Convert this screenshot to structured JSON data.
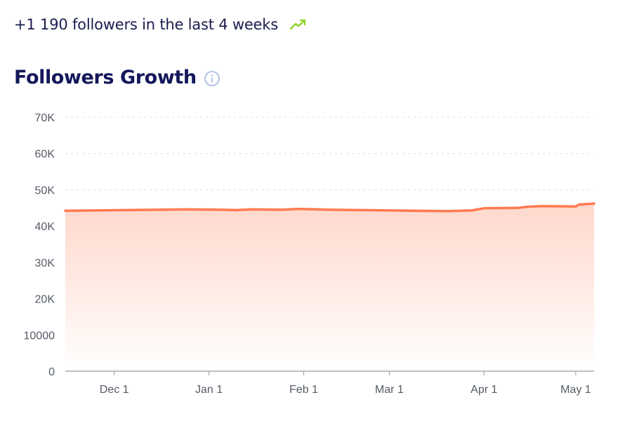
{
  "summary": {
    "text": "+1 190 followers in the last 4 weeks",
    "trend_icon": "trending-up-icon",
    "trend_color": "#8ed12a"
  },
  "header": {
    "title": "Followers Growth",
    "info_icon": "info-icon",
    "info_color": "#a9bce3"
  },
  "colors": {
    "line": "#ff7a52",
    "area_top": "#ffd6c9",
    "grid": "#dcdcdc",
    "axis": "#9a9a9a",
    "ticks": "#555b66"
  },
  "chart_data": {
    "type": "area",
    "title": "Followers Growth",
    "xlabel": "",
    "ylabel": "",
    "ylim": [
      0,
      70000
    ],
    "y_ticks": [
      {
        "value": 0,
        "label": "0"
      },
      {
        "value": 10000,
        "label": "10000"
      },
      {
        "value": 20000,
        "label": "20K"
      },
      {
        "value": 30000,
        "label": "30K"
      },
      {
        "value": 40000,
        "label": "40K"
      },
      {
        "value": 50000,
        "label": "50K"
      },
      {
        "value": 60000,
        "label": "60K"
      },
      {
        "value": 70000,
        "label": "70K"
      }
    ],
    "x_range": [
      "2024-11-15",
      "2025-05-07"
    ],
    "x_ticks": [
      {
        "date": "2024-12-01",
        "label": "Dec 1"
      },
      {
        "date": "2025-01-01",
        "label": "Jan 1"
      },
      {
        "date": "2025-02-01",
        "label": "Feb 1"
      },
      {
        "date": "2025-03-01",
        "label": "Mar 1"
      },
      {
        "date": "2025-04-01",
        "label": "Apr 1"
      },
      {
        "date": "2025-05-01",
        "label": "May 1"
      }
    ],
    "grid": true,
    "legend": "none",
    "series": [
      {
        "values": [
          {
            "x": "2024-11-15",
            "y": 44200
          },
          {
            "x": "2024-11-25",
            "y": 44300
          },
          {
            "x": "2024-12-05",
            "y": 44400
          },
          {
            "x": "2024-12-15",
            "y": 44500
          },
          {
            "x": "2024-12-25",
            "y": 44600
          },
          {
            "x": "2025-01-05",
            "y": 44500
          },
          {
            "x": "2025-01-10",
            "y": 44400
          },
          {
            "x": "2025-01-15",
            "y": 44600
          },
          {
            "x": "2025-01-25",
            "y": 44500
          },
          {
            "x": "2025-01-30",
            "y": 44700
          },
          {
            "x": "2025-02-10",
            "y": 44500
          },
          {
            "x": "2025-02-20",
            "y": 44400
          },
          {
            "x": "2025-03-01",
            "y": 44300
          },
          {
            "x": "2025-03-10",
            "y": 44200
          },
          {
            "x": "2025-03-20",
            "y": 44100
          },
          {
            "x": "2025-03-28",
            "y": 44300
          },
          {
            "x": "2025-04-01",
            "y": 44900
          },
          {
            "x": "2025-04-12",
            "y": 45000
          },
          {
            "x": "2025-04-15",
            "y": 45300
          },
          {
            "x": "2025-04-20",
            "y": 45500
          },
          {
            "x": "2025-05-01",
            "y": 45400
          },
          {
            "x": "2025-05-02",
            "y": 45900
          },
          {
            "x": "2025-05-07",
            "y": 46200
          }
        ]
      }
    ]
  }
}
